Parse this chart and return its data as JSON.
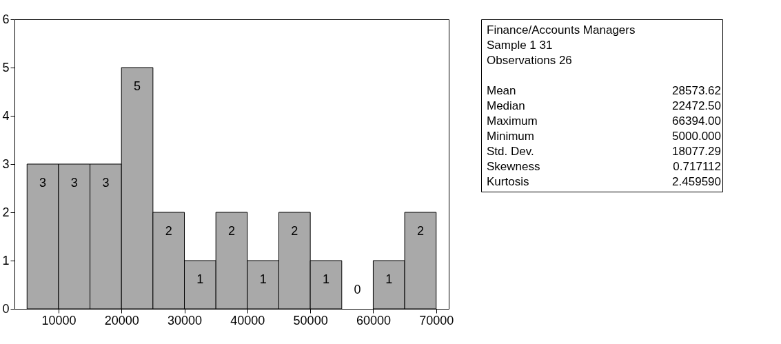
{
  "chart_data": [
    {
      "type": "histogram",
      "bins": [
        5000,
        10000,
        15000,
        20000,
        25000,
        30000,
        35000,
        40000,
        45000,
        50000,
        55000,
        60000,
        65000,
        70000
      ],
      "values": [
        3,
        3,
        3,
        5,
        2,
        1,
        2,
        1,
        2,
        1,
        0,
        1,
        2
      ],
      "color": "#a9a9a9",
      "data_labels": true,
      "grid": false,
      "xlim": [
        3000,
        72000
      ],
      "xticks": [
        10000,
        20000,
        30000,
        40000,
        50000,
        60000,
        70000
      ],
      "ylim": [
        0,
        6
      ],
      "yticks": [
        0,
        1,
        2,
        3,
        4,
        5,
        6
      ]
    },
    {
      "type": "other",
      "title": "Finance/Accounts Managers",
      "annotations": [
        "Sample 1 31",
        "Observations 26",
        "Mean",
        "28573.62",
        "Median",
        "22472.50",
        "Maximum",
        "66394.00",
        "Minimum",
        "5000.000",
        "Std. Dev.",
        "18077.29",
        "Skewness",
        "0.717112",
        "Kurtosis",
        "2.459590"
      ]
    }
  ]
}
